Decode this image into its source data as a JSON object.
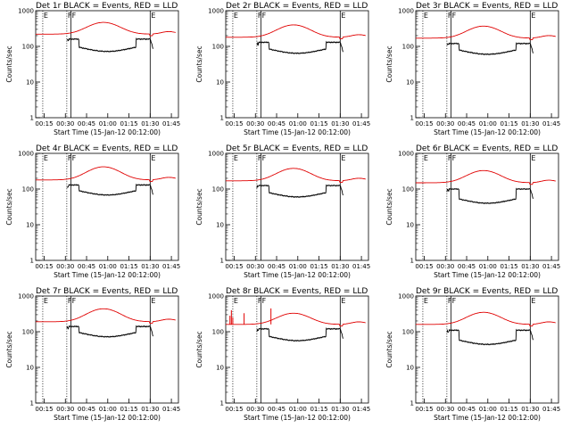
{
  "chart_data": [
    {
      "type": "line",
      "title": "Det 1r BLACK = Events, RED = LLD",
      "xlabel": "Start Time (15-Jan-12 00:12:00)",
      "ylabel": "Counts/sec",
      "ylog": true,
      "ylim": [
        1,
        1000
      ],
      "xlim": [
        0.15,
        1.8333
      ],
      "xticks": [
        "00:15",
        "00:30",
        "00:45",
        "01:00",
        "01:15",
        "01:30",
        "01:45"
      ],
      "yticks": [
        "1",
        "10",
        "100",
        "1000"
      ],
      "markers": [
        {
          "label": "E",
          "t": 0.2333,
          "style": "dotted"
        },
        {
          "label": "F",
          "t": 0.5167,
          "style": "dotted"
        },
        {
          "label": "F",
          "t": 0.5667,
          "style": "solid"
        },
        {
          "label": "E",
          "t": 1.5,
          "style": "solid"
        }
      ],
      "series": [
        {
          "name": "Events",
          "color": "#000000",
          "t_start": 0.5167,
          "t_end": 1.5333,
          "base": 160,
          "dip": 90
        },
        {
          "name": "LLD",
          "color": "#e00000",
          "t_start": 0.15,
          "t_end": 1.8,
          "base": 220,
          "peak": 470
        }
      ]
    },
    {
      "type": "line",
      "title": "Det 2r BLACK = Events, RED = LLD",
      "xlabel": "Start Time (15-Jan-12 00:12:00)",
      "ylabel": "Counts/sec",
      "ylog": true,
      "ylim": [
        1,
        1000
      ],
      "xlim": [
        0.15,
        1.8333
      ],
      "xticks": [
        "00:15",
        "00:30",
        "00:45",
        "01:00",
        "01:15",
        "01:30",
        "01:45"
      ],
      "yticks": [
        "1",
        "10",
        "100",
        "1000"
      ],
      "markers": [
        {
          "label": "E",
          "t": 0.2333,
          "style": "dotted"
        },
        {
          "label": "F",
          "t": 0.5167,
          "style": "dotted"
        },
        {
          "label": "F",
          "t": 0.5667,
          "style": "solid"
        },
        {
          "label": "E",
          "t": 1.5,
          "style": "solid"
        }
      ],
      "series": [
        {
          "name": "Events",
          "color": "#000000",
          "t_start": 0.5167,
          "t_end": 1.5333,
          "base": 130,
          "dip": 80
        },
        {
          "name": "LLD",
          "color": "#e00000",
          "t_start": 0.15,
          "t_end": 1.8,
          "base": 180,
          "peak": 400
        }
      ]
    },
    {
      "type": "line",
      "title": "Det 3r BLACK = Events, RED = LLD",
      "xlabel": "Start Time (15-Jan-12 00:12:00)",
      "ylabel": "Counts/sec",
      "ylog": true,
      "ylim": [
        1,
        1000
      ],
      "xlim": [
        0.15,
        1.8333
      ],
      "xticks": [
        "00:15",
        "00:30",
        "00:45",
        "01:00",
        "01:15",
        "01:30",
        "01:45"
      ],
      "yticks": [
        "1",
        "10",
        "100",
        "1000"
      ],
      "markers": [
        {
          "label": "E",
          "t": 0.2333,
          "style": "dotted"
        },
        {
          "label": "F",
          "t": 0.5167,
          "style": "dotted"
        },
        {
          "label": "F",
          "t": 0.5667,
          "style": "solid"
        },
        {
          "label": "E",
          "t": 1.5,
          "style": "solid"
        }
      ],
      "series": [
        {
          "name": "Events",
          "color": "#000000",
          "t_start": 0.5167,
          "t_end": 1.5333,
          "base": 120,
          "dip": 75
        },
        {
          "name": "LLD",
          "color": "#e00000",
          "t_start": 0.15,
          "t_end": 1.8,
          "base": 170,
          "peak": 370
        }
      ]
    },
    {
      "type": "line",
      "title": "Det 4r BLACK = Events, RED = LLD",
      "xlabel": "Start Time (15-Jan-12 00:12:00)",
      "ylabel": "Counts/sec",
      "ylog": true,
      "ylim": [
        1,
        1000
      ],
      "xlim": [
        0.15,
        1.8333
      ],
      "xticks": [
        "00:15",
        "00:30",
        "00:45",
        "01:00",
        "01:15",
        "01:30",
        "01:45"
      ],
      "yticks": [
        "1",
        "10",
        "100",
        "1000"
      ],
      "markers": [
        {
          "label": "E",
          "t": 0.2333,
          "style": "dotted"
        },
        {
          "label": "F",
          "t": 0.5167,
          "style": "dotted"
        },
        {
          "label": "F",
          "t": 0.5667,
          "style": "solid"
        },
        {
          "label": "E",
          "t": 1.5,
          "style": "solid"
        }
      ],
      "series": [
        {
          "name": "Events",
          "color": "#000000",
          "t_start": 0.5167,
          "t_end": 1.5333,
          "base": 130,
          "dip": 85
        },
        {
          "name": "LLD",
          "color": "#e00000",
          "t_start": 0.15,
          "t_end": 1.8,
          "base": 180,
          "peak": 420
        }
      ]
    },
    {
      "type": "line",
      "title": "Det 5r BLACK = Events, RED = LLD",
      "xlabel": "Start Time (15-Jan-12 00:12:00)",
      "ylabel": "Counts/sec",
      "ylog": true,
      "ylim": [
        1,
        1000
      ],
      "xlim": [
        0.15,
        1.8333
      ],
      "xticks": [
        "00:15",
        "00:30",
        "00:45",
        "01:00",
        "01:15",
        "01:30",
        "01:45"
      ],
      "yticks": [
        "1",
        "10",
        "100",
        "1000"
      ],
      "markers": [
        {
          "label": "E",
          "t": 0.2333,
          "style": "dotted"
        },
        {
          "label": "F",
          "t": 0.5167,
          "style": "dotted"
        },
        {
          "label": "F",
          "t": 0.5667,
          "style": "solid"
        },
        {
          "label": "E",
          "t": 1.5,
          "style": "solid"
        }
      ],
      "series": [
        {
          "name": "Events",
          "color": "#000000",
          "t_start": 0.5167,
          "t_end": 1.5333,
          "base": 125,
          "dip": 75
        },
        {
          "name": "LLD",
          "color": "#e00000",
          "t_start": 0.15,
          "t_end": 1.8,
          "base": 170,
          "peak": 380
        }
      ]
    },
    {
      "type": "line",
      "title": "Det 6r BLACK = Events, RED = LLD",
      "xlabel": "Start Time (15-Jan-12 00:12:00)",
      "ylabel": "Counts/sec",
      "ylog": true,
      "ylim": [
        1,
        1000
      ],
      "xlim": [
        0.15,
        1.8333
      ],
      "xticks": [
        "00:15",
        "00:30",
        "00:45",
        "01:00",
        "01:15",
        "01:30",
        "01:45"
      ],
      "yticks": [
        "1",
        "10",
        "100",
        "1000"
      ],
      "markers": [
        {
          "label": "E",
          "t": 0.2333,
          "style": "dotted"
        },
        {
          "label": "F",
          "t": 0.5167,
          "style": "dotted"
        },
        {
          "label": "F",
          "t": 0.5667,
          "style": "solid"
        },
        {
          "label": "E",
          "t": 1.5,
          "style": "solid"
        }
      ],
      "series": [
        {
          "name": "Events",
          "color": "#000000",
          "t_start": 0.5167,
          "t_end": 1.5333,
          "base": 100,
          "dip": 50
        },
        {
          "name": "LLD",
          "color": "#e00000",
          "t_start": 0.15,
          "t_end": 1.8,
          "base": 150,
          "peak": 330
        }
      ]
    },
    {
      "type": "line",
      "title": "Det 7r BLACK = Events, RED = LLD",
      "xlabel": "Start Time (15-Jan-12 00:12:00)",
      "ylabel": "Counts/sec",
      "ylog": true,
      "ylim": [
        1,
        1000
      ],
      "xlim": [
        0.15,
        1.8333
      ],
      "xticks": [
        "00:15",
        "00:30",
        "00:45",
        "01:00",
        "01:15",
        "01:30",
        "01:45"
      ],
      "yticks": [
        "1",
        "10",
        "100",
        "1000"
      ],
      "markers": [
        {
          "label": "E",
          "t": 0.2333,
          "style": "dotted"
        },
        {
          "label": "F",
          "t": 0.5167,
          "style": "dotted"
        },
        {
          "label": "F",
          "t": 0.5667,
          "style": "solid"
        },
        {
          "label": "E",
          "t": 1.5,
          "style": "solid"
        }
      ],
      "series": [
        {
          "name": "Events",
          "color": "#000000",
          "t_start": 0.5167,
          "t_end": 1.5333,
          "base": 140,
          "dip": 90
        },
        {
          "name": "LLD",
          "color": "#e00000",
          "t_start": 0.15,
          "t_end": 1.8,
          "base": 190,
          "peak": 440
        }
      ]
    },
    {
      "type": "line",
      "title": "Det 8r BLACK = Events, RED = LLD",
      "xlabel": "Start Time (15-Jan-12 00:12:00)",
      "ylabel": "Counts/sec",
      "ylog": true,
      "ylim": [
        1,
        1000
      ],
      "xlim": [
        0.15,
        1.8333
      ],
      "xticks": [
        "00:15",
        "00:30",
        "00:45",
        "01:00",
        "01:15",
        "01:30",
        "01:45"
      ],
      "yticks": [
        "1",
        "10",
        "100",
        "1000"
      ],
      "markers": [
        {
          "label": "E",
          "t": 0.2333,
          "style": "dotted"
        },
        {
          "label": "F",
          "t": 0.5167,
          "style": "dotted"
        },
        {
          "label": "F",
          "t": 0.5667,
          "style": "solid"
        },
        {
          "label": "E",
          "t": 1.5,
          "style": "solid"
        }
      ],
      "series": [
        {
          "name": "Events",
          "color": "#000000",
          "t_start": 0.5167,
          "t_end": 1.5333,
          "base": 120,
          "dip": 70
        },
        {
          "name": "LLD",
          "color": "#e00000",
          "t_start": 0.15,
          "t_end": 1.8,
          "base": 160,
          "peak": 330
        }
      ],
      "spikes": [
        {
          "t": 0.2,
          "value": 280
        },
        {
          "t": 0.2167,
          "value": 400
        },
        {
          "t": 0.2333,
          "value": 250
        },
        {
          "t": 0.3667,
          "value": 330
        },
        {
          "t": 0.6833,
          "value": 450
        }
      ]
    },
    {
      "type": "line",
      "title": "Det 9r BLACK = Events, RED = LLD",
      "xlabel": "Start Time (15-Jan-12 00:12:00)",
      "ylabel": "Counts/sec",
      "ylog": true,
      "ylim": [
        1,
        1000
      ],
      "xlim": [
        0.15,
        1.8333
      ],
      "xticks": [
        "00:15",
        "00:30",
        "00:45",
        "01:00",
        "01:15",
        "01:30",
        "01:45"
      ],
      "yticks": [
        "1",
        "10",
        "100",
        "1000"
      ],
      "markers": [
        {
          "label": "E",
          "t": 0.2333,
          "style": "dotted"
        },
        {
          "label": "F",
          "t": 0.5167,
          "style": "dotted"
        },
        {
          "label": "F",
          "t": 0.5667,
          "style": "solid"
        },
        {
          "label": "E",
          "t": 1.5,
          "style": "solid"
        }
      ],
      "series": [
        {
          "name": "Events",
          "color": "#000000",
          "t_start": 0.5167,
          "t_end": 1.5333,
          "base": 110,
          "dip": 55
        },
        {
          "name": "LLD",
          "color": "#e00000",
          "t_start": 0.15,
          "t_end": 1.8,
          "base": 160,
          "peak": 350
        }
      ]
    }
  ]
}
